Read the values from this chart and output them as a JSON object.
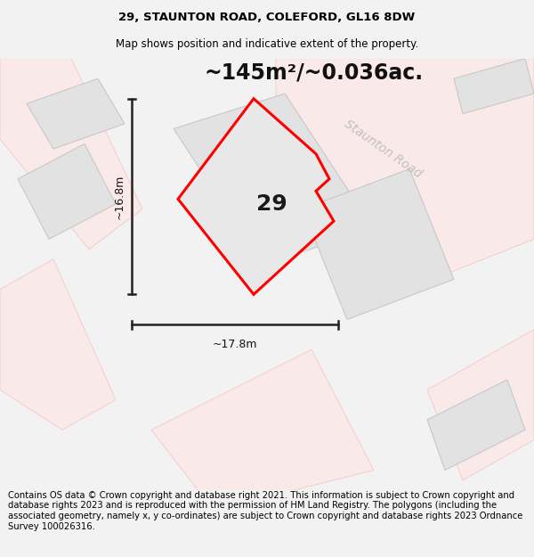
{
  "title": "29, STAUNTON ROAD, COLEFORD, GL16 8DW",
  "subtitle": "Map shows position and indicative extent of the property.",
  "area_label": "~145m²/~0.036ac.",
  "number_label": "29",
  "width_label": "~17.8m",
  "height_label": "~16.8m",
  "road_label": "Staunton Road",
  "footer": "Contains OS data © Crown copyright and database right 2021. This information is subject to Crown copyright and database rights 2023 and is reproduced with the permission of HM Land Registry. The polygons (including the associated geometry, namely x, y co-ordinates) are subject to Crown copyright and database rights 2023 Ordnance Survey 100026316.",
  "bg_color": "#f2f2f2",
  "map_bg_color": "#ffffff",
  "polygon_color": "#ff0000",
  "polygon_fill": "#e8e8e8",
  "neighbor_fill": "#e2e2e2",
  "neighbor_stroke": "#c8c8c8",
  "road_fill": "#fce8e8",
  "road_stroke": "#f5c0c0",
  "title_fontsize": 9.5,
  "subtitle_fontsize": 8.5,
  "area_fontsize": 17,
  "number_fontsize": 18,
  "road_fontsize": 10,
  "dim_fontsize": 9,
  "footer_fontsize": 7.2
}
